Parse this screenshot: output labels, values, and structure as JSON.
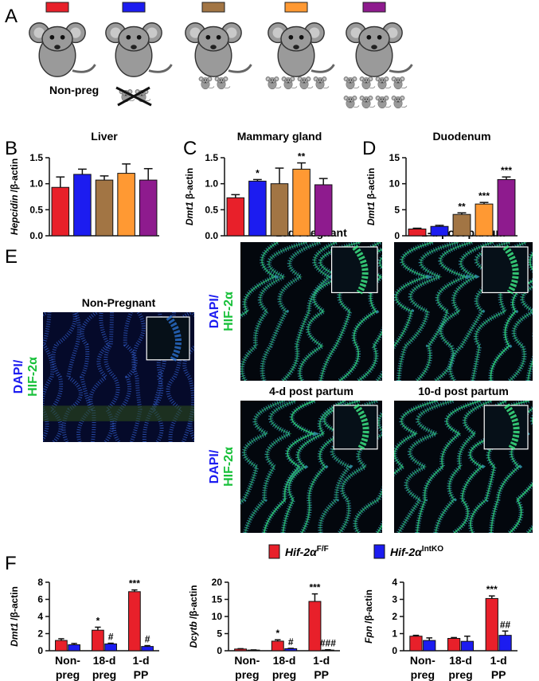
{
  "panel_labels": [
    "A",
    "B",
    "C",
    "D",
    "E",
    "F"
  ],
  "panel_a": {
    "colors": [
      "#e8202a",
      "#1c1cf0",
      "#a27544",
      "#ff9933",
      "#8e1b8e"
    ],
    "label": "Non-preg"
  },
  "panel_e": {
    "stain_top": "DAPI/",
    "stain_bottom": "HIF-2α",
    "images": [
      "Non-Pregnant",
      "18d-Pregnant",
      "1-d post partum",
      "4-d post partum",
      "10-d post partum"
    ]
  },
  "panel_f_legend": [
    {
      "name": "Hif-2α",
      "sup": "F/F",
      "color": "#e8202a"
    },
    {
      "name": "Hif-2α",
      "sup": "IntKO",
      "color": "#1c1cf0"
    }
  ],
  "chart_data": [
    {
      "type": "bar",
      "title": "Liver",
      "ylabel": {
        "gene": "Hepcidin",
        "rest": "/β-actin"
      },
      "categories": [
        null,
        null,
        null,
        null,
        null
      ],
      "values": [
        0.93,
        1.18,
        1.07,
        1.2,
        1.07
      ],
      "errors": [
        0.2,
        0.1,
        0.08,
        0.18,
        0.22
      ],
      "annotations": [
        null,
        null,
        null,
        null,
        null
      ],
      "colors": [
        "#e8202a",
        "#1c1cf0",
        "#a27544",
        "#ff9933",
        "#8e1b8e"
      ],
      "ylim": [
        0,
        1.5
      ],
      "yticks": [
        {
          "value": 0,
          "label": "0.0"
        },
        0.5,
        {
          "value": 1,
          "label": "1.0"
        },
        1.5
      ]
    },
    {
      "type": "bar",
      "title": "Mammary gland",
      "ylabel": {
        "gene": "Dmt1",
        "rest": "β-actin"
      },
      "categories": [
        null,
        null,
        null,
        null,
        null
      ],
      "values": [
        0.73,
        1.05,
        1.0,
        1.28,
        0.98
      ],
      "errors": [
        0.06,
        0.03,
        0.3,
        0.12,
        0.12
      ],
      "annotations": [
        null,
        "*",
        null,
        "**",
        null
      ],
      "colors": [
        "#e8202a",
        "#1c1cf0",
        "#a27544",
        "#ff9933",
        "#8e1b8e"
      ],
      "ylim": [
        0,
        1.5
      ],
      "yticks": [
        {
          "value": 0,
          "label": "0.0"
        },
        0.5,
        {
          "value": 1,
          "label": "1.0"
        },
        1.5
      ]
    },
    {
      "type": "bar",
      "title": "Duodenum",
      "ylabel": {
        "gene": "Dmt1",
        "rest": "β-actin"
      },
      "categories": [
        null,
        null,
        null,
        null,
        null
      ],
      "values": [
        1.3,
        1.8,
        4.1,
        6.1,
        10.8
      ],
      "errors": [
        0.15,
        0.2,
        0.3,
        0.3,
        0.5
      ],
      "annotations": [
        null,
        null,
        "**",
        "***",
        "***"
      ],
      "colors": [
        "#e8202a",
        "#1c1cf0",
        "#a27544",
        "#ff9933",
        "#8e1b8e"
      ],
      "ylim": [
        0,
        15
      ],
      "yticks": [
        0,
        5,
        10,
        15
      ]
    },
    {
      "type": "grouped_bar",
      "ylabel": {
        "gene": "Dmt1",
        "rest": "/β-actin"
      },
      "categories": [
        [
          "Non-",
          "preg"
        ],
        [
          "18-d",
          "preg"
        ],
        [
          "1-d",
          "PP"
        ]
      ],
      "series": [
        {
          "color": "#e8202a",
          "values": [
            1.2,
            2.4,
            6.9
          ],
          "errors": [
            0.2,
            0.35,
            0.2
          ],
          "annotations": [
            null,
            "*",
            "***"
          ]
        },
        {
          "color": "#1c1cf0",
          "values": [
            0.7,
            0.8,
            0.5
          ],
          "errors": [
            0.15,
            0.08,
            0.1
          ],
          "annotations": [
            null,
            "#",
            "#"
          ]
        }
      ],
      "ylim": [
        0,
        8
      ],
      "yticks": [
        0,
        2,
        4,
        6,
        8
      ]
    },
    {
      "type": "grouped_bar",
      "ylabel": {
        "gene": "Dcytb",
        "rest": "/β-actin"
      },
      "categories": [
        [
          "Non-",
          "preg"
        ],
        [
          "18-d",
          "preg"
        ],
        [
          "1-d",
          "PP"
        ]
      ],
      "series": [
        {
          "color": "#e8202a",
          "values": [
            0.5,
            2.8,
            14.4
          ],
          "errors": [
            0.1,
            0.4,
            2.2
          ],
          "annotations": [
            null,
            "*",
            "***"
          ]
        },
        {
          "color": "#1c1cf0",
          "values": [
            0.2,
            0.6,
            0.2
          ],
          "errors": [
            0.05,
            0.1,
            0.1
          ],
          "annotations": [
            null,
            "#",
            "###"
          ]
        }
      ],
      "ylim": [
        0,
        20
      ],
      "yticks": [
        0,
        5,
        10,
        15,
        20
      ]
    },
    {
      "type": "grouped_bar",
      "ylabel": {
        "gene": "Fpn",
        "rest": "/β-actin"
      },
      "categories": [
        [
          "Non-",
          "preg"
        ],
        [
          "18-d",
          "preg"
        ],
        [
          "1-d",
          "PP"
        ]
      ],
      "series": [
        {
          "color": "#e8202a",
          "values": [
            0.85,
            0.72,
            3.05
          ],
          "errors": [
            0.05,
            0.05,
            0.15
          ],
          "annotations": [
            null,
            null,
            "***"
          ]
        },
        {
          "color": "#1c1cf0",
          "values": [
            0.6,
            0.55,
            0.9
          ],
          "errors": [
            0.15,
            0.3,
            0.25
          ],
          "annotations": [
            null,
            null,
            "##"
          ]
        }
      ],
      "ylim": [
        0,
        4
      ],
      "yticks": [
        0,
        1,
        2,
        3,
        4
      ]
    }
  ]
}
